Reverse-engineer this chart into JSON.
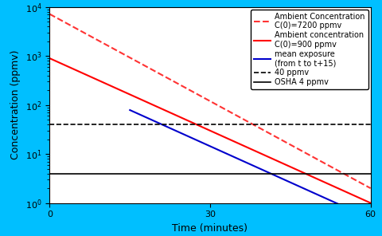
{
  "title": "",
  "xlabel": "Time (minutes)",
  "ylabel": "Concentration (ppmv)",
  "xlim": [
    0,
    60
  ],
  "ylim": [
    1,
    10000
  ],
  "background_color": "#00BFFF",
  "plot_bg_color": "#FFFFFF",
  "C0_dashed": 7200,
  "C0_solid": 900,
  "k_dashed": 0.1344,
  "k_solid": 0.1151,
  "osha_level": 4,
  "forty_ppmv": 40,
  "blue_start_t": 0,
  "blue_mean_window": 15,
  "legend_labels": [
    "Ambient Concentration\nC(0)=7200 ppmv",
    "Ambient concentration\nC(0)=900 ppmv",
    "mean exposure\n(from t to t+15)",
    "40 ppmv",
    "OSHA 4 ppmv"
  ],
  "color_red_dashed": "#FF3333",
  "color_red_solid": "#FF0000",
  "color_blue_solid": "#0000CC",
  "color_black_dashed": "#000000",
  "color_black_solid": "#000000",
  "tick_label_fontsize": 8,
  "axis_label_fontsize": 9,
  "legend_fontsize": 7
}
